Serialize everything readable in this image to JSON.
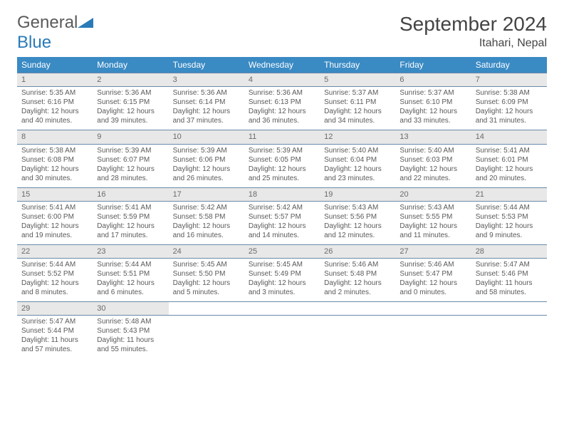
{
  "brand": {
    "name1": "General",
    "name2": "Blue"
  },
  "title": "September 2024",
  "location": "Itahari, Nepal",
  "colors": {
    "header_bg": "#3a8ac4",
    "daynum_bg": "#e8e8e8",
    "border": "#6a8aa8",
    "text": "#5a5a5a",
    "title": "#444444",
    "brand_gray": "#5a5a5a",
    "brand_blue": "#2a7ab8"
  },
  "fonts": {
    "title_size": 28,
    "location_size": 16,
    "day_header_size": 12,
    "cell_size": 10
  },
  "weekdays": [
    "Sunday",
    "Monday",
    "Tuesday",
    "Wednesday",
    "Thursday",
    "Friday",
    "Saturday"
  ],
  "weeks": [
    [
      {
        "day": "1",
        "sunrise": "Sunrise: 5:35 AM",
        "sunset": "Sunset: 6:16 PM",
        "daylight": "Daylight: 12 hours and 40 minutes."
      },
      {
        "day": "2",
        "sunrise": "Sunrise: 5:36 AM",
        "sunset": "Sunset: 6:15 PM",
        "daylight": "Daylight: 12 hours and 39 minutes."
      },
      {
        "day": "3",
        "sunrise": "Sunrise: 5:36 AM",
        "sunset": "Sunset: 6:14 PM",
        "daylight": "Daylight: 12 hours and 37 minutes."
      },
      {
        "day": "4",
        "sunrise": "Sunrise: 5:36 AM",
        "sunset": "Sunset: 6:13 PM",
        "daylight": "Daylight: 12 hours and 36 minutes."
      },
      {
        "day": "5",
        "sunrise": "Sunrise: 5:37 AM",
        "sunset": "Sunset: 6:11 PM",
        "daylight": "Daylight: 12 hours and 34 minutes."
      },
      {
        "day": "6",
        "sunrise": "Sunrise: 5:37 AM",
        "sunset": "Sunset: 6:10 PM",
        "daylight": "Daylight: 12 hours and 33 minutes."
      },
      {
        "day": "7",
        "sunrise": "Sunrise: 5:38 AM",
        "sunset": "Sunset: 6:09 PM",
        "daylight": "Daylight: 12 hours and 31 minutes."
      }
    ],
    [
      {
        "day": "8",
        "sunrise": "Sunrise: 5:38 AM",
        "sunset": "Sunset: 6:08 PM",
        "daylight": "Daylight: 12 hours and 30 minutes."
      },
      {
        "day": "9",
        "sunrise": "Sunrise: 5:39 AM",
        "sunset": "Sunset: 6:07 PM",
        "daylight": "Daylight: 12 hours and 28 minutes."
      },
      {
        "day": "10",
        "sunrise": "Sunrise: 5:39 AM",
        "sunset": "Sunset: 6:06 PM",
        "daylight": "Daylight: 12 hours and 26 minutes."
      },
      {
        "day": "11",
        "sunrise": "Sunrise: 5:39 AM",
        "sunset": "Sunset: 6:05 PM",
        "daylight": "Daylight: 12 hours and 25 minutes."
      },
      {
        "day": "12",
        "sunrise": "Sunrise: 5:40 AM",
        "sunset": "Sunset: 6:04 PM",
        "daylight": "Daylight: 12 hours and 23 minutes."
      },
      {
        "day": "13",
        "sunrise": "Sunrise: 5:40 AM",
        "sunset": "Sunset: 6:03 PM",
        "daylight": "Daylight: 12 hours and 22 minutes."
      },
      {
        "day": "14",
        "sunrise": "Sunrise: 5:41 AM",
        "sunset": "Sunset: 6:01 PM",
        "daylight": "Daylight: 12 hours and 20 minutes."
      }
    ],
    [
      {
        "day": "15",
        "sunrise": "Sunrise: 5:41 AM",
        "sunset": "Sunset: 6:00 PM",
        "daylight": "Daylight: 12 hours and 19 minutes."
      },
      {
        "day": "16",
        "sunrise": "Sunrise: 5:41 AM",
        "sunset": "Sunset: 5:59 PM",
        "daylight": "Daylight: 12 hours and 17 minutes."
      },
      {
        "day": "17",
        "sunrise": "Sunrise: 5:42 AM",
        "sunset": "Sunset: 5:58 PM",
        "daylight": "Daylight: 12 hours and 16 minutes."
      },
      {
        "day": "18",
        "sunrise": "Sunrise: 5:42 AM",
        "sunset": "Sunset: 5:57 PM",
        "daylight": "Daylight: 12 hours and 14 minutes."
      },
      {
        "day": "19",
        "sunrise": "Sunrise: 5:43 AM",
        "sunset": "Sunset: 5:56 PM",
        "daylight": "Daylight: 12 hours and 12 minutes."
      },
      {
        "day": "20",
        "sunrise": "Sunrise: 5:43 AM",
        "sunset": "Sunset: 5:55 PM",
        "daylight": "Daylight: 12 hours and 11 minutes."
      },
      {
        "day": "21",
        "sunrise": "Sunrise: 5:44 AM",
        "sunset": "Sunset: 5:53 PM",
        "daylight": "Daylight: 12 hours and 9 minutes."
      }
    ],
    [
      {
        "day": "22",
        "sunrise": "Sunrise: 5:44 AM",
        "sunset": "Sunset: 5:52 PM",
        "daylight": "Daylight: 12 hours and 8 minutes."
      },
      {
        "day": "23",
        "sunrise": "Sunrise: 5:44 AM",
        "sunset": "Sunset: 5:51 PM",
        "daylight": "Daylight: 12 hours and 6 minutes."
      },
      {
        "day": "24",
        "sunrise": "Sunrise: 5:45 AM",
        "sunset": "Sunset: 5:50 PM",
        "daylight": "Daylight: 12 hours and 5 minutes."
      },
      {
        "day": "25",
        "sunrise": "Sunrise: 5:45 AM",
        "sunset": "Sunset: 5:49 PM",
        "daylight": "Daylight: 12 hours and 3 minutes."
      },
      {
        "day": "26",
        "sunrise": "Sunrise: 5:46 AM",
        "sunset": "Sunset: 5:48 PM",
        "daylight": "Daylight: 12 hours and 2 minutes."
      },
      {
        "day": "27",
        "sunrise": "Sunrise: 5:46 AM",
        "sunset": "Sunset: 5:47 PM",
        "daylight": "Daylight: 12 hours and 0 minutes."
      },
      {
        "day": "28",
        "sunrise": "Sunrise: 5:47 AM",
        "sunset": "Sunset: 5:46 PM",
        "daylight": "Daylight: 11 hours and 58 minutes."
      }
    ],
    [
      {
        "day": "29",
        "sunrise": "Sunrise: 5:47 AM",
        "sunset": "Sunset: 5:44 PM",
        "daylight": "Daylight: 11 hours and 57 minutes."
      },
      {
        "day": "30",
        "sunrise": "Sunrise: 5:48 AM",
        "sunset": "Sunset: 5:43 PM",
        "daylight": "Daylight: 11 hours and 55 minutes."
      },
      null,
      null,
      null,
      null,
      null
    ]
  ]
}
